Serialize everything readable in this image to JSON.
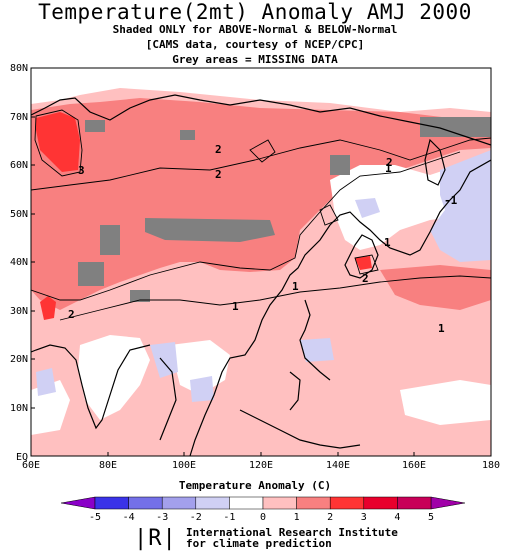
{
  "title": "Temperature(2mt) Anomaly AMJ 2000",
  "subtitles": [
    "Shaded ONLY for ABOVE-Normal & BELOW-Normal",
    "[CAMS data, courtesy of NCEP/CPC]",
    "Grey areas = MISSING DATA"
  ],
  "lat_ticks": [
    "EQ",
    "10N",
    "20N",
    "30N",
    "40N",
    "50N",
    "60N",
    "70N",
    "80N"
  ],
  "lon_ticks": [
    "60E",
    "80E",
    "100E",
    "120E",
    "140E",
    "160E",
    "180"
  ],
  "contour_labels": [
    "3",
    "2",
    "2",
    "2",
    "2",
    "1",
    "1",
    "1",
    "2",
    "-1",
    "1",
    "1"
  ],
  "legend": {
    "title": "Temperature Anomaly (C)",
    "ticks": [
      "-5",
      "-4",
      "-3",
      "-2",
      "-1",
      "0",
      "1",
      "2",
      "3",
      "4",
      "5"
    ],
    "colors": [
      "#3a33e8",
      "#7470e8",
      "#a3a0ec",
      "#d0d0f4",
      "#ffffff",
      "#ffffff",
      "#ffc0c0",
      "#f88080",
      "#ff3434",
      "#e8002c",
      "#c80058"
    ],
    "arrow_low": "#8a00c8",
    "arrow_high": "#a000a8"
  },
  "logo": {
    "mark": "|R|",
    "line1": "International Research Institute",
    "line2": "for climate prediction"
  },
  "colors": {
    "missing": "#808080",
    "above_1_2": "#ffc0c0",
    "above_2_3": "#f88080",
    "above_3_4": "#ff3434",
    "below": "#d0d0f4"
  }
}
